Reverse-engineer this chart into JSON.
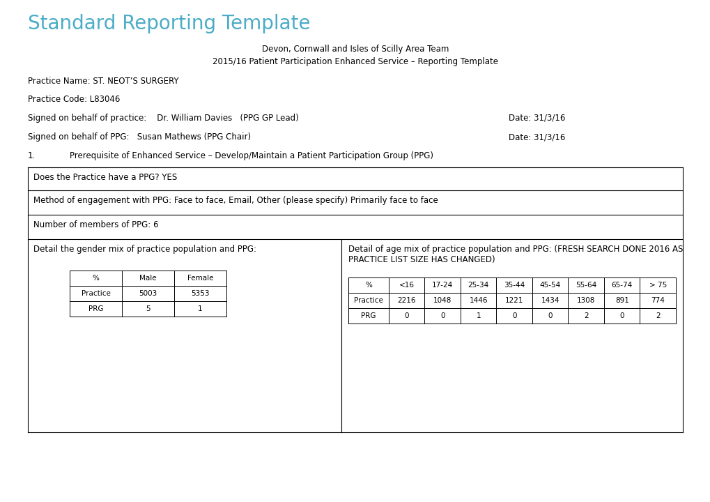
{
  "title": "Standard Reporting Template",
  "title_color": "#4BACC6",
  "subtitle1": "Devon, Cornwall and Isles of Scilly Area Team",
  "subtitle2": "2015/16 Patient Participation Enhanced Service – Reporting Template",
  "practice_name": "Practice Name: ST. NEOT’S SURGERY",
  "practice_code": "Practice Code: L83046",
  "signed_practice": "Signed on behalf of practice:    Dr. William Davies   (PPG GP Lead)",
  "signed_practice_date": "Date: 31/3/16",
  "signed_ppg": "Signed on behalf of PPG:   Susan Mathews (PPG Chair)",
  "signed_ppg_date": "Date: 31/3/16",
  "section1_header_num": "1.",
  "section1_header_text": "Prerequisite of Enhanced Service – Develop/Maintain a Patient Participation Group (PPG)",
  "row1_text": "Does the Practice have a PPG? YES",
  "row2_text": "Method of engagement with PPG: Face to face, Email, Other (please specify) Primarily face to face",
  "row3_text": "Number of members of PPG: 6",
  "row4_left_header": "Detail the gender mix of practice population and PPG:",
  "row4_right_line1": "Detail of age mix of practice population and PPG: (FRESH SEARCH DONE 2016 AS",
  "row4_right_line2": "PRACTICE LIST SIZE HAS CHANGED)",
  "gender_table_headers": [
    "%",
    "Male",
    "Female"
  ],
  "gender_table_rows": [
    [
      "Practice",
      "5003",
      "5353"
    ],
    [
      "PRG",
      "5",
      "1"
    ]
  ],
  "age_table_headers": [
    "%",
    "<16",
    "17-24",
    "25-34",
    "35-44",
    "45-54",
    "55-64",
    "65-74",
    "> 75"
  ],
  "age_table_rows": [
    [
      "Practice",
      "2216",
      "1048",
      "1446",
      "1221",
      "1434",
      "1308",
      "891",
      "774"
    ],
    [
      "PRG",
      "0",
      "0",
      "1",
      "0",
      "0",
      "2",
      "0",
      "2"
    ]
  ],
  "bg_color": "#FFFFFF",
  "text_color": "#000000",
  "border_color": "#000000",
  "font_size_title": 20,
  "font_size_body": 8.5,
  "font_size_small": 7.5
}
